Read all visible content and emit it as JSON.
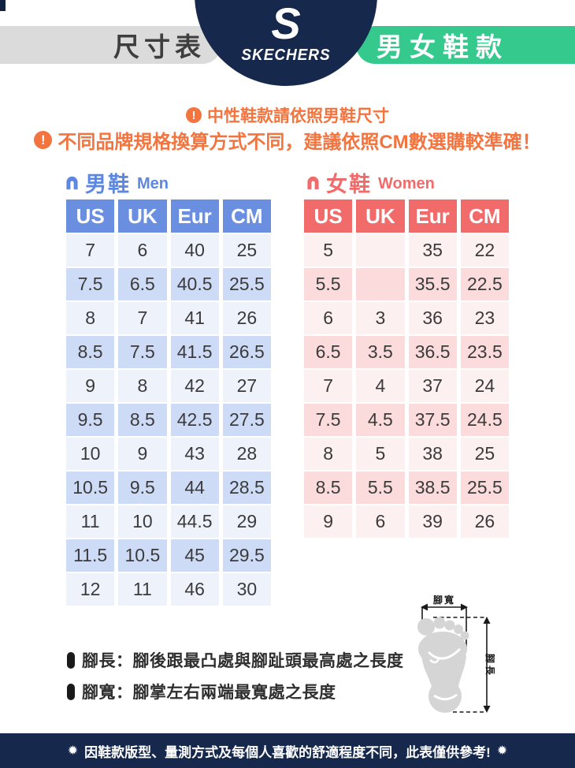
{
  "header": {
    "size_label": "尺寸表",
    "brand_initial": "S",
    "brand_name": "SKECHERS",
    "category_label": "男女鞋款"
  },
  "notices": [
    {
      "icon": "!",
      "text": "中性鞋款請依照男鞋尺寸"
    },
    {
      "icon": "!",
      "text": "不同品牌規格換算方式不同，建議依照CM數選購較準確！"
    }
  ],
  "men_table": {
    "title": "男鞋",
    "subtitle": "Men",
    "headers": [
      "US",
      "UK",
      "Eur",
      "CM"
    ],
    "rows": [
      [
        "7",
        "6",
        "40",
        "25"
      ],
      [
        "7.5",
        "6.5",
        "40.5",
        "25.5"
      ],
      [
        "8",
        "7",
        "41",
        "26"
      ],
      [
        "8.5",
        "7.5",
        "41.5",
        "26.5"
      ],
      [
        "9",
        "8",
        "42",
        "27"
      ],
      [
        "9.5",
        "8.5",
        "42.5",
        "27.5"
      ],
      [
        "10",
        "9",
        "43",
        "28"
      ],
      [
        "10.5",
        "9.5",
        "44",
        "28.5"
      ],
      [
        "11",
        "10",
        "44.5",
        "29"
      ],
      [
        "11.5",
        "10.5",
        "45",
        "29.5"
      ],
      [
        "12",
        "11",
        "46",
        "30"
      ]
    ]
  },
  "women_table": {
    "title": "女鞋",
    "subtitle": "Women",
    "headers": [
      "US",
      "UK",
      "Eur",
      "CM"
    ],
    "rows": [
      [
        "5",
        "",
        "35",
        "22"
      ],
      [
        "5.5",
        "",
        "35.5",
        "22.5"
      ],
      [
        "6",
        "3",
        "36",
        "23"
      ],
      [
        "6.5",
        "3.5",
        "36.5",
        "23.5"
      ],
      [
        "7",
        "4",
        "37",
        "24"
      ],
      [
        "7.5",
        "4.5",
        "37.5",
        "24.5"
      ],
      [
        "8",
        "5",
        "38",
        "25"
      ],
      [
        "8.5",
        "5.5",
        "38.5",
        "25.5"
      ],
      [
        "9",
        "6",
        "39",
        "26"
      ]
    ]
  },
  "diagram": {
    "width_label": "腳寬",
    "length_label": "腳長"
  },
  "legend": [
    {
      "text": "腳長：腳後跟最凸處與腳趾頭最高處之長度"
    },
    {
      "text": "腳寬：腳掌左右兩端最寬處之長度"
    }
  ],
  "footer": {
    "star": "✹",
    "text": "因鞋款版型、量測方式及每個人喜歡的舒適程度不同，此表僅供參考!"
  },
  "colors": {
    "navy": "#16294C",
    "green": "#35C98E",
    "orange": "#F3743E",
    "men_blue": "#6A8FE0",
    "women_red": "#F26B6B",
    "gray_badge": "#DBDBDB"
  }
}
